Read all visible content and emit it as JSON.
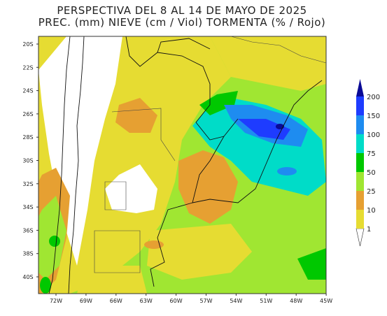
{
  "title": "PERSPECTIVA DEL 8 AL 14 DE MAYO DE 2025",
  "subtitle": "PREC. (mm) NIEVE (cm / Viol) TORMENTA (% / Rojo)",
  "latitude_labels": [
    "20S",
    "22S",
    "24S",
    "26S",
    "28S",
    "30S",
    "32S",
    "34S",
    "36S",
    "38S",
    "40S"
  ],
  "longitude_labels": [
    "72W",
    "69W",
    "66W",
    "63W",
    "60W",
    "57W",
    "54W",
    "51W",
    "48W",
    "45W"
  ],
  "colorbar": {
    "levels": [
      1,
      10,
      25,
      50,
      75,
      100,
      150,
      200
    ],
    "colors": [
      "#e6dc32",
      "#e6a032",
      "#a0e632",
      "#00c800",
      "#00dcc8",
      "#1e8cf0",
      "#1e3cff",
      "#0a0a96"
    ]
  }
}
